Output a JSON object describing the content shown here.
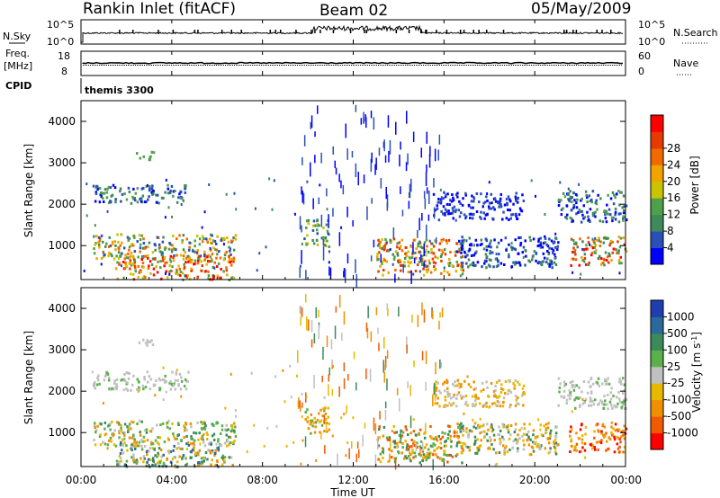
{
  "header": {
    "station": "Rankin Inlet (fitACF)",
    "beam": "Beam 02",
    "date": "05/May/2009"
  },
  "left_labels": {
    "nsky": "N.Sky",
    "freq_line1": "Freq.",
    "freq_line2": "[MHz]",
    "cpid": "CPID"
  },
  "right_labels": {
    "nsearch": "N.Search",
    "nave": "Nave"
  },
  "cpid_text": "themis 3300",
  "colors": {
    "power_scale": [
      "#0000ff",
      "#2a4fb8",
      "#3f8a5a",
      "#4fa04a",
      "#c9c400",
      "#f2a300",
      "#f06a00",
      "#e63a00",
      "#ff0000"
    ],
    "velocity_scale": [
      "#1f3fb0",
      "#2a6a9a",
      "#3a8a5a",
      "#5ab04a",
      "#c0c0c0",
      "#e8b800",
      "#f09000",
      "#f05a00",
      "#ff0000"
    ]
  },
  "chart_data": [
    {
      "type": "line",
      "panel": "N.Sky / N.Search",
      "left_ticks": [
        "10^5",
        "10^0"
      ],
      "right_ticks": [
        "10^5",
        "10^0"
      ],
      "x_ticks": [
        "00:00",
        "04:00",
        "08:00",
        "12:00",
        "16:00",
        "20:00",
        "00:00"
      ]
    },
    {
      "type": "line",
      "panel": "Freq / Nave",
      "left_ticks": [
        "18",
        "8"
      ],
      "right_ticks": [
        "60",
        "0"
      ],
      "x_ticks": [
        "00:00",
        "04:00",
        "08:00",
        "12:00",
        "16:00",
        "20:00",
        "00:00"
      ]
    },
    {
      "type": "heatmap",
      "panel": "Power",
      "ylabel": "Slant Range [km]",
      "ylim": [
        180,
        4500
      ],
      "y_ticks": [
        1000,
        2000,
        3000,
        4000
      ],
      "colorbar_label": "Power [dB]",
      "colorbar_ticks": [
        4,
        8,
        12,
        16,
        20,
        24,
        28
      ]
    },
    {
      "type": "heatmap",
      "panel": "Velocity",
      "ylabel": "Slant Range [km]",
      "ylim": [
        180,
        4500
      ],
      "y_ticks": [
        1000,
        2000,
        3000,
        4000
      ],
      "colorbar_label": "Velocity [m s",
      "colorbar_label_sup": "-1",
      "colorbar_label_end": "]",
      "colorbar_ticks": [
        "1000",
        "500",
        "100",
        "25",
        "-25",
        "-100",
        "-500",
        "-1000"
      ],
      "xlabel": "Time UT",
      "x_ticks": [
        "00:00",
        "04:00",
        "08:00",
        "12:00",
        "16:00",
        "20:00",
        "00:00"
      ]
    }
  ]
}
